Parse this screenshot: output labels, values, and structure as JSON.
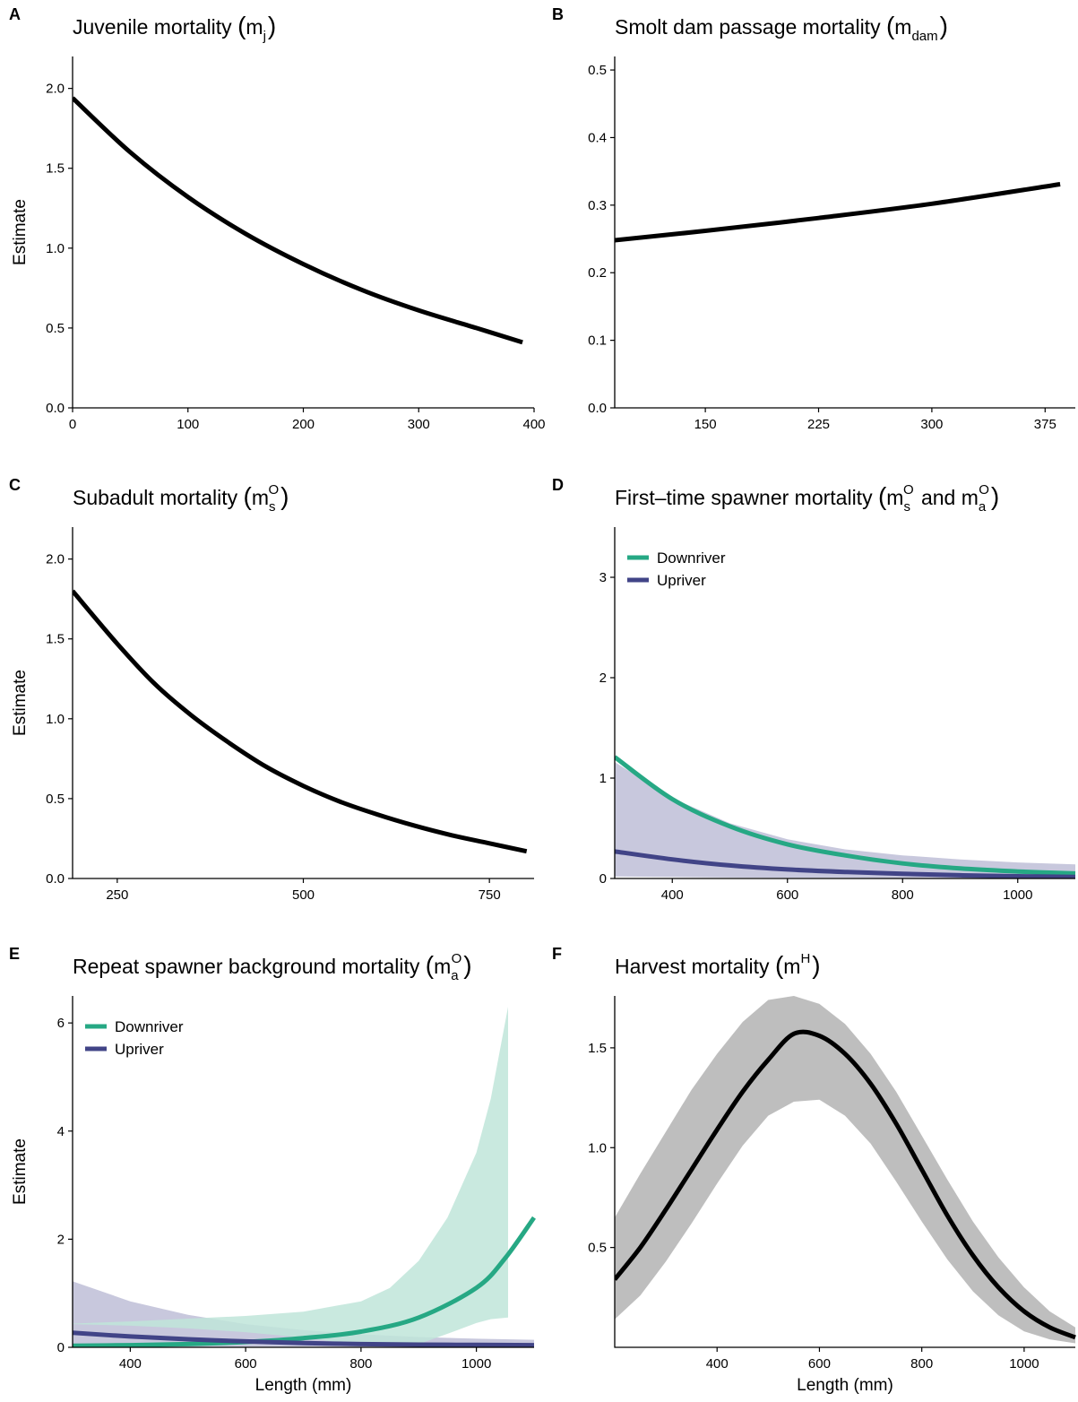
{
  "colors": {
    "downriver": "#26a884",
    "upriver": "#414487",
    "downriver_band": "#bfe5d9",
    "upriver_band": "#c8c8dd",
    "overlap_band": "#a9c9cf",
    "harvest_band": "#bebebe",
    "line_black": "#000000"
  },
  "chart_data": [
    {
      "id": "A",
      "letter": "A",
      "type": "line",
      "title_parts": [
        "Juvenile mortality ",
        "(",
        "m",
        "j",
        "",
        ")"
      ],
      "xlabel": "",
      "ylabel": "Estimate",
      "xlim": [
        0,
        400
      ],
      "ylim": [
        0,
        2.2
      ],
      "xticks": [
        0,
        100,
        200,
        300,
        400
      ],
      "yticks": [
        0.0,
        0.5,
        1.0,
        1.5,
        2.0
      ],
      "ytick_labels": [
        "0.0",
        "0.5",
        "1.0",
        "1.5",
        "2.0"
      ],
      "series": [
        {
          "color": "#000000",
          "x": [
            0,
            50,
            100,
            150,
            200,
            250,
            300,
            350,
            390
          ],
          "y": [
            1.94,
            1.6,
            1.32,
            1.09,
            0.9,
            0.74,
            0.61,
            0.5,
            0.41
          ]
        }
      ],
      "bands": [],
      "legend": []
    },
    {
      "id": "B",
      "letter": "B",
      "type": "line",
      "title_parts": [
        "Smolt dam passage mortality ",
        "(",
        "m",
        "dam",
        "",
        ")"
      ],
      "xlabel": "",
      "ylabel": "",
      "xlim": [
        90,
        395
      ],
      "ylim": [
        0,
        0.52
      ],
      "xticks": [
        150,
        225,
        300,
        375
      ],
      "yticks": [
        0.0,
        0.1,
        0.2,
        0.3,
        0.4,
        0.5
      ],
      "ytick_labels": [
        "0.0",
        "0.1",
        "0.2",
        "0.3",
        "0.4",
        "0.5"
      ],
      "series": [
        {
          "color": "#000000",
          "x": [
            90,
            150,
            225,
            300,
            385
          ],
          "y": [
            0.248,
            0.262,
            0.281,
            0.302,
            0.331
          ]
        }
      ],
      "bands": [],
      "legend": []
    },
    {
      "id": "C",
      "letter": "C",
      "type": "line",
      "title_parts": [
        "Subadult mortality ",
        "(",
        "m",
        "s",
        "O",
        ")"
      ],
      "xlabel": "",
      "ylabel": "Estimate",
      "xlim": [
        190,
        810
      ],
      "ylim": [
        0,
        2.2
      ],
      "xticks": [
        250,
        500,
        750
      ],
      "yticks": [
        0.0,
        0.5,
        1.0,
        1.5,
        2.0
      ],
      "ytick_labels": [
        "0.0",
        "0.5",
        "1.0",
        "1.5",
        "2.0"
      ],
      "series": [
        {
          "color": "#000000",
          "x": [
            190,
            250,
            300,
            350,
            400,
            450,
            500,
            550,
            600,
            650,
            700,
            750,
            800
          ],
          "y": [
            1.8,
            1.47,
            1.22,
            1.02,
            0.85,
            0.7,
            0.58,
            0.48,
            0.4,
            0.33,
            0.27,
            0.22,
            0.17
          ]
        }
      ],
      "bands": [],
      "legend": []
    },
    {
      "id": "D",
      "letter": "D",
      "type": "line",
      "title_parts": [
        "First–time spawner mortality ",
        "(",
        "m",
        "s",
        "O",
        " and ",
        "m",
        "a",
        "O",
        ")"
      ],
      "xlabel": "",
      "ylabel": "",
      "xlim": [
        300,
        1100
      ],
      "ylim": [
        0,
        3.5
      ],
      "xticks": [
        400,
        600,
        800,
        1000
      ],
      "yticks": [
        0,
        1,
        2,
        3
      ],
      "ytick_labels": [
        "0",
        "1",
        "2",
        "3"
      ],
      "series": [
        {
          "name": "Downriver",
          "color": "#26a884",
          "x": [
            300,
            400,
            500,
            600,
            700,
            800,
            900,
            1000,
            1100
          ],
          "y": [
            1.21,
            0.79,
            0.52,
            0.34,
            0.23,
            0.15,
            0.1,
            0.07,
            0.05
          ]
        },
        {
          "name": "Upriver",
          "color": "#414487",
          "x": [
            300,
            400,
            500,
            600,
            700,
            800,
            900,
            1000,
            1100
          ],
          "y": [
            0.27,
            0.19,
            0.13,
            0.09,
            0.065,
            0.046,
            0.032,
            0.022,
            0.016
          ]
        }
      ],
      "bands": [
        {
          "color": "#c8c8dd",
          "x": [
            300,
            400,
            500,
            600,
            700,
            800,
            900,
            1000,
            1100
          ],
          "lower": [
            0.02,
            0.015,
            0.01,
            0.008,
            0.006,
            0.004,
            0.003,
            0.002,
            0.002
          ],
          "upper": [
            1.16,
            0.8,
            0.55,
            0.39,
            0.29,
            0.23,
            0.19,
            0.16,
            0.14
          ]
        }
      ],
      "legend": [
        {
          "label": "Downriver",
          "color": "#26a884"
        },
        {
          "label": "Upriver",
          "color": "#414487"
        }
      ]
    },
    {
      "id": "E",
      "letter": "E",
      "type": "line",
      "title_parts": [
        "Repeat spawner background mortality ",
        "(",
        "m",
        "a",
        "O",
        ")"
      ],
      "xlabel": "Length (mm)",
      "ylabel": "Estimate",
      "xlim": [
        300,
        1100
      ],
      "ylim": [
        0,
        6.5
      ],
      "xticks": [
        400,
        600,
        800,
        1000
      ],
      "yticks": [
        0,
        2,
        4,
        6
      ],
      "ytick_labels": [
        "0",
        "2",
        "4",
        "6"
      ],
      "series": [
        {
          "name": "Downriver",
          "color": "#26a884",
          "x": [
            300,
            400,
            500,
            600,
            700,
            800,
            900,
            1000,
            1050,
            1100
          ],
          "y": [
            0.03,
            0.04,
            0.06,
            0.1,
            0.17,
            0.29,
            0.55,
            1.1,
            1.65,
            2.4
          ]
        },
        {
          "name": "Upriver",
          "color": "#414487",
          "x": [
            300,
            400,
            500,
            600,
            700,
            800,
            900,
            1000,
            1100
          ],
          "y": [
            0.27,
            0.2,
            0.15,
            0.11,
            0.08,
            0.06,
            0.05,
            0.045,
            0.04
          ]
        }
      ],
      "bands": [
        {
          "color": "#c8c8dd",
          "x": [
            300,
            400,
            500,
            600,
            700,
            800,
            900,
            1000,
            1100
          ],
          "lower": [
            0.01,
            0.01,
            0.01,
            0.01,
            0.01,
            0.01,
            0.01,
            0.01,
            0.01
          ],
          "upper": [
            1.22,
            0.85,
            0.6,
            0.43,
            0.32,
            0.24,
            0.19,
            0.16,
            0.14
          ]
        },
        {
          "color": "#bfe5d9",
          "opacity": 0.85,
          "x": [
            300,
            400,
            500,
            600,
            700,
            800,
            850,
            900,
            950,
            1000,
            1025,
            1055
          ],
          "lower": [
            0.43,
            0.4,
            0.35,
            0.28,
            0.18,
            0.04,
            0.02,
            0.06,
            0.25,
            0.45,
            0.52,
            0.55
          ],
          "upper": [
            0.44,
            0.48,
            0.53,
            0.58,
            0.66,
            0.85,
            1.1,
            1.6,
            2.4,
            3.6,
            4.6,
            6.3
          ]
        }
      ],
      "legend": [
        {
          "label": "Downriver",
          "color": "#26a884"
        },
        {
          "label": "Upriver",
          "color": "#414487"
        }
      ]
    },
    {
      "id": "F",
      "letter": "F",
      "type": "line",
      "title_parts": [
        "Harvest mortality ",
        "(",
        "m",
        "",
        "H",
        ")"
      ],
      "xlabel": "Length (mm)",
      "ylabel": "",
      "xlim": [
        200,
        1100
      ],
      "ylim": [
        0,
        1.76
      ],
      "xticks": [
        400,
        600,
        800,
        1000
      ],
      "yticks": [
        0.5,
        1.0,
        1.5
      ],
      "ytick_labels": [
        "0.5",
        "1.0",
        "1.5"
      ],
      "series": [
        {
          "color": "#000000",
          "x": [
            200,
            250,
            300,
            350,
            400,
            450,
            500,
            550,
            600,
            650,
            700,
            750,
            800,
            850,
            900,
            950,
            1000,
            1050,
            1100
          ],
          "y": [
            0.34,
            0.5,
            0.69,
            0.89,
            1.09,
            1.28,
            1.44,
            1.57,
            1.56,
            1.47,
            1.32,
            1.12,
            0.89,
            0.66,
            0.46,
            0.3,
            0.18,
            0.1,
            0.05
          ]
        }
      ],
      "bands": [
        {
          "color": "#bebebe",
          "x": [
            200,
            250,
            300,
            350,
            400,
            450,
            500,
            550,
            600,
            650,
            700,
            750,
            800,
            850,
            900,
            950,
            1000,
            1050,
            1100
          ],
          "lower": [
            0.14,
            0.26,
            0.43,
            0.62,
            0.82,
            1.01,
            1.16,
            1.23,
            1.24,
            1.16,
            1.02,
            0.83,
            0.63,
            0.44,
            0.28,
            0.16,
            0.08,
            0.04,
            0.02
          ],
          "upper": [
            0.65,
            0.87,
            1.08,
            1.29,
            1.47,
            1.63,
            1.74,
            1.76,
            1.72,
            1.62,
            1.47,
            1.28,
            1.06,
            0.84,
            0.63,
            0.45,
            0.3,
            0.18,
            0.1
          ]
        }
      ],
      "legend": []
    }
  ]
}
